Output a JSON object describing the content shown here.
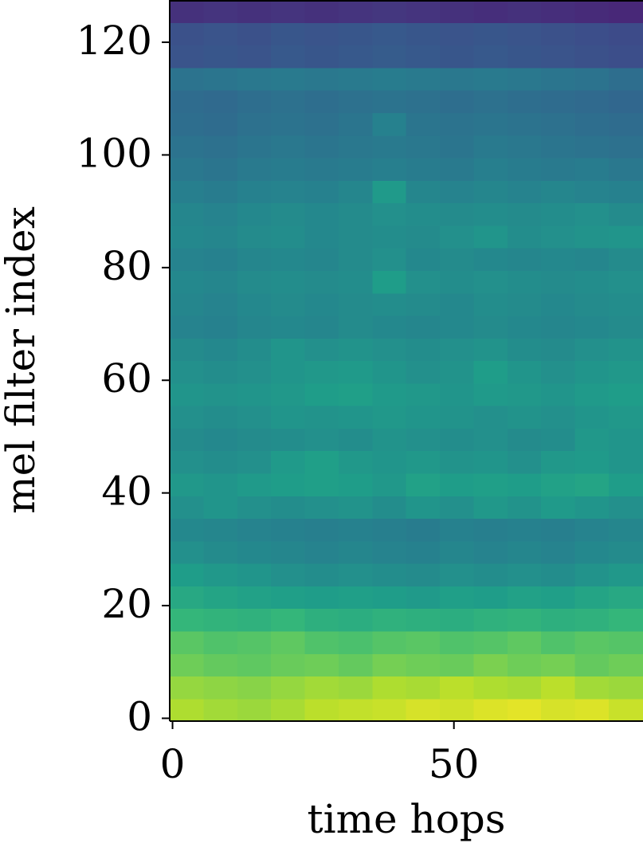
{
  "chart_data": {
    "type": "heatmap",
    "colormap": "viridis",
    "xlabel": "time hops",
    "ylabel": "mel filter index",
    "xlim": [
      -0.5,
      83.6
    ],
    "ylim": [
      -0.5,
      127.5
    ],
    "xticks": [
      0,
      50
    ],
    "yticks": [
      0,
      20,
      40,
      60,
      80,
      100,
      120
    ],
    "xbins": [
      -0.5,
      5.5,
      11.5,
      17.5,
      23.5,
      29.5,
      35.5,
      41.5,
      47.5,
      53.5,
      59.5,
      65.5,
      71.5,
      77.5,
      83.5
    ],
    "ybins": [
      -0.5,
      3.5,
      7.5,
      11.5,
      15.5,
      19.5,
      23.5,
      27.5,
      31.5,
      35.5,
      39.5,
      43.5,
      47.5,
      51.5,
      55.5,
      59.5,
      63.5,
      67.5,
      71.5,
      75.5,
      79.5,
      83.5,
      87.5,
      91.5,
      95.5,
      99.5,
      103.5,
      107.5,
      111.5,
      115.5,
      119.5,
      123.5,
      127.5
    ],
    "values": [
      [
        0.88,
        0.86,
        0.85,
        0.87,
        0.9,
        0.91,
        0.92,
        0.94,
        0.93,
        0.95,
        0.96,
        0.94,
        0.95,
        0.92
      ],
      [
        0.84,
        0.83,
        0.82,
        0.84,
        0.86,
        0.85,
        0.88,
        0.87,
        0.9,
        0.88,
        0.87,
        0.9,
        0.86,
        0.85
      ],
      [
        0.78,
        0.76,
        0.75,
        0.77,
        0.78,
        0.76,
        0.79,
        0.78,
        0.77,
        0.8,
        0.78,
        0.79,
        0.76,
        0.78
      ],
      [
        0.74,
        0.72,
        0.73,
        0.75,
        0.72,
        0.71,
        0.73,
        0.74,
        0.72,
        0.73,
        0.75,
        0.72,
        0.74,
        0.73
      ],
      [
        0.66,
        0.65,
        0.64,
        0.66,
        0.63,
        0.62,
        0.64,
        0.63,
        0.62,
        0.64,
        0.65,
        0.63,
        0.64,
        0.66
      ],
      [
        0.6,
        0.58,
        0.57,
        0.56,
        0.55,
        0.56,
        0.55,
        0.54,
        0.56,
        0.55,
        0.57,
        0.56,
        0.58,
        0.6
      ],
      [
        0.55,
        0.53,
        0.52,
        0.5,
        0.49,
        0.5,
        0.49,
        0.48,
        0.5,
        0.49,
        0.5,
        0.49,
        0.51,
        0.53
      ],
      [
        0.5,
        0.48,
        0.47,
        0.46,
        0.45,
        0.46,
        0.45,
        0.44,
        0.46,
        0.45,
        0.46,
        0.45,
        0.47,
        0.48
      ],
      [
        0.47,
        0.46,
        0.45,
        0.44,
        0.43,
        0.44,
        0.43,
        0.42,
        0.44,
        0.43,
        0.44,
        0.43,
        0.45,
        0.46
      ],
      [
        0.5,
        0.52,
        0.5,
        0.49,
        0.5,
        0.51,
        0.49,
        0.52,
        0.5,
        0.53,
        0.51,
        0.54,
        0.52,
        0.5
      ],
      [
        0.53,
        0.52,
        0.54,
        0.55,
        0.56,
        0.55,
        0.53,
        0.57,
        0.55,
        0.56,
        0.55,
        0.57,
        0.58,
        0.55
      ],
      [
        0.5,
        0.49,
        0.5,
        0.54,
        0.56,
        0.53,
        0.52,
        0.53,
        0.51,
        0.52,
        0.5,
        0.53,
        0.54,
        0.52
      ],
      [
        0.48,
        0.47,
        0.48,
        0.49,
        0.5,
        0.49,
        0.51,
        0.5,
        0.49,
        0.5,
        0.48,
        0.49,
        0.53,
        0.52
      ],
      [
        0.5,
        0.49,
        0.5,
        0.52,
        0.51,
        0.52,
        0.53,
        0.52,
        0.51,
        0.5,
        0.51,
        0.5,
        0.52,
        0.53
      ],
      [
        0.52,
        0.51,
        0.52,
        0.53,
        0.55,
        0.56,
        0.54,
        0.53,
        0.52,
        0.54,
        0.53,
        0.52,
        0.54,
        0.55
      ],
      [
        0.5,
        0.49,
        0.5,
        0.52,
        0.53,
        0.54,
        0.52,
        0.5,
        0.51,
        0.55,
        0.52,
        0.5,
        0.52,
        0.53
      ],
      [
        0.48,
        0.47,
        0.49,
        0.52,
        0.5,
        0.51,
        0.5,
        0.49,
        0.5,
        0.51,
        0.49,
        0.48,
        0.5,
        0.51
      ],
      [
        0.45,
        0.44,
        0.46,
        0.47,
        0.46,
        0.48,
        0.47,
        0.46,
        0.47,
        0.48,
        0.47,
        0.46,
        0.47,
        0.48
      ],
      [
        0.46,
        0.45,
        0.47,
        0.48,
        0.47,
        0.48,
        0.49,
        0.48,
        0.47,
        0.49,
        0.48,
        0.47,
        0.48,
        0.49
      ],
      [
        0.47,
        0.46,
        0.48,
        0.49,
        0.48,
        0.49,
        0.55,
        0.5,
        0.49,
        0.5,
        0.49,
        0.48,
        0.49,
        0.5
      ],
      [
        0.45,
        0.44,
        0.46,
        0.47,
        0.46,
        0.48,
        0.5,
        0.47,
        0.48,
        0.47,
        0.46,
        0.47,
        0.46,
        0.48
      ],
      [
        0.47,
        0.46,
        0.48,
        0.49,
        0.47,
        0.48,
        0.49,
        0.48,
        0.5,
        0.52,
        0.49,
        0.5,
        0.51,
        0.52
      ],
      [
        0.46,
        0.45,
        0.47,
        0.48,
        0.47,
        0.48,
        0.5,
        0.49,
        0.48,
        0.49,
        0.48,
        0.49,
        0.5,
        0.48
      ],
      [
        0.43,
        0.42,
        0.44,
        0.45,
        0.44,
        0.46,
        0.54,
        0.46,
        0.45,
        0.46,
        0.45,
        0.46,
        0.45,
        0.44
      ],
      [
        0.4,
        0.39,
        0.41,
        0.42,
        0.41,
        0.42,
        0.43,
        0.42,
        0.41,
        0.43,
        0.42,
        0.41,
        0.42,
        0.4
      ],
      [
        0.38,
        0.37,
        0.39,
        0.4,
        0.39,
        0.4,
        0.41,
        0.4,
        0.39,
        0.41,
        0.4,
        0.39,
        0.38,
        0.37
      ],
      [
        0.36,
        0.35,
        0.37,
        0.38,
        0.37,
        0.39,
        0.44,
        0.39,
        0.38,
        0.39,
        0.38,
        0.37,
        0.36,
        0.35
      ],
      [
        0.35,
        0.34,
        0.36,
        0.37,
        0.36,
        0.37,
        0.38,
        0.37,
        0.36,
        0.37,
        0.36,
        0.35,
        0.34,
        0.33
      ],
      [
        0.38,
        0.39,
        0.4,
        0.41,
        0.4,
        0.41,
        0.42,
        0.41,
        0.4,
        0.41,
        0.4,
        0.39,
        0.38,
        0.36
      ],
      [
        0.26,
        0.27,
        0.26,
        0.28,
        0.27,
        0.28,
        0.29,
        0.28,
        0.27,
        0.28,
        0.27,
        0.26,
        0.25,
        0.24
      ],
      [
        0.25,
        0.26,
        0.25,
        0.27,
        0.26,
        0.27,
        0.28,
        0.27,
        0.26,
        0.27,
        0.26,
        0.25,
        0.24,
        0.23
      ],
      [
        0.14,
        0.15,
        0.14,
        0.15,
        0.14,
        0.15,
        0.16,
        0.15,
        0.14,
        0.13,
        0.14,
        0.13,
        0.12,
        0.11
      ]
    ]
  }
}
